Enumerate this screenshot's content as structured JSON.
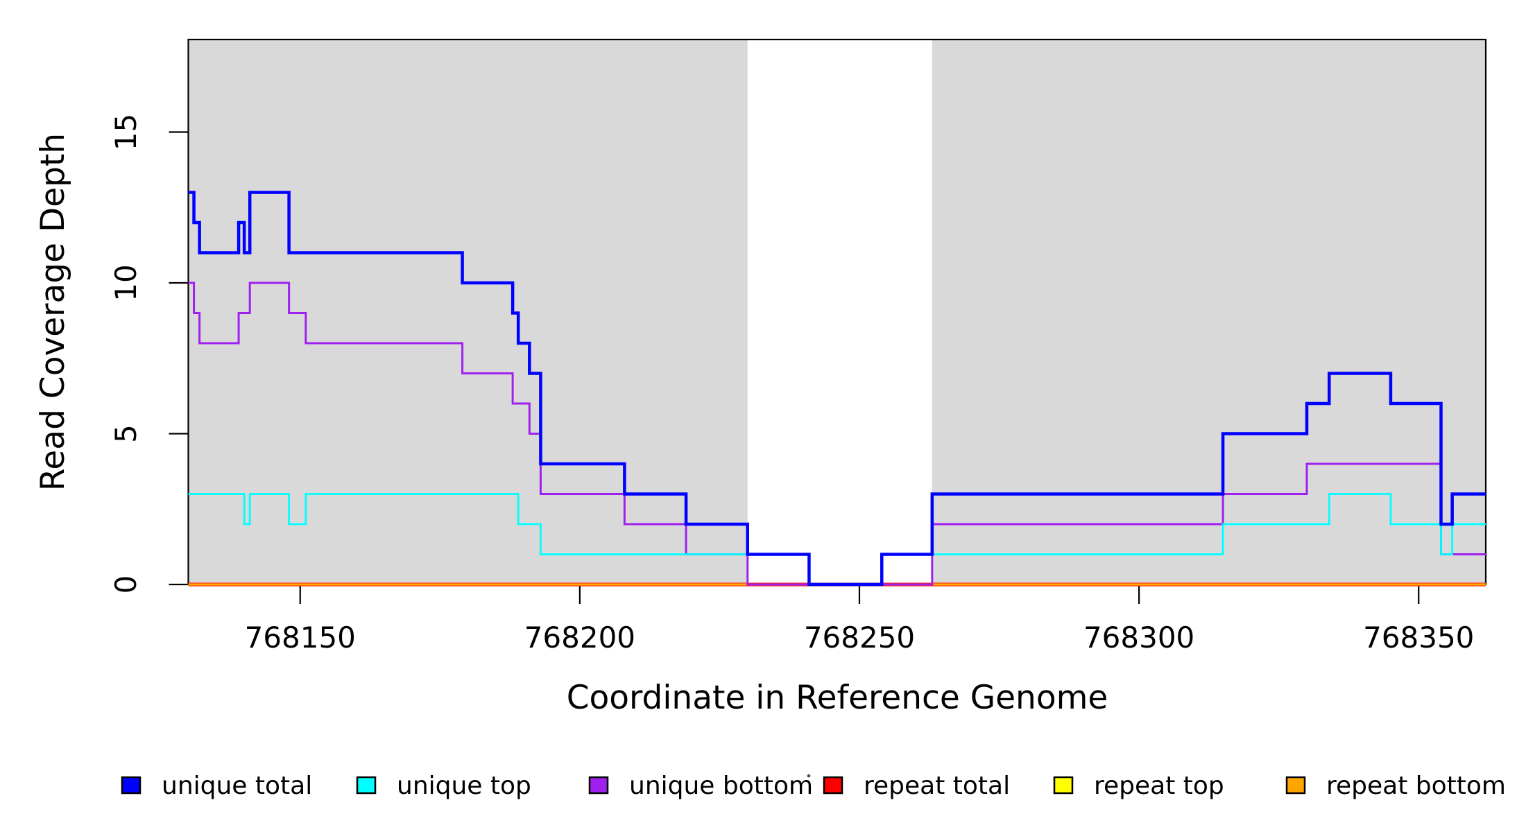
{
  "chart_data": {
    "type": "line",
    "subtype": "step-coverage-plot",
    "title": "",
    "xlabel": "Coordinate in Reference Genome",
    "ylabel": "Read Coverage Depth",
    "xlim": [
      768130,
      768362
    ],
    "ylim": [
      0,
      18.1
    ],
    "xticks": [
      768150,
      768200,
      768250,
      768300,
      768350
    ],
    "yticks": [
      0,
      5,
      10,
      15
    ],
    "grid": false,
    "legend_position": "bottom",
    "shaded_regions": {
      "color": "#d9d9d9",
      "ranges": [
        [
          768130,
          768230
        ],
        [
          768263,
          768362
        ]
      ]
    },
    "x_end": 768362,
    "series": [
      {
        "name": "repeat total",
        "color": "#ff0000",
        "line_width": 5,
        "steps": [
          [
            768130,
            0
          ]
        ]
      },
      {
        "name": "repeat top",
        "color": "#ffff00",
        "line_width": 3,
        "steps": [
          [
            768130,
            0
          ]
        ]
      },
      {
        "name": "repeat bottom",
        "color": "#ffa500",
        "line_width": 3.2,
        "steps": [
          [
            768130,
            0
          ]
        ]
      },
      {
        "name": "unique bottom",
        "color": "#a020f0",
        "line_width": 3,
        "steps": [
          [
            768130,
            10
          ],
          [
            768131,
            9
          ],
          [
            768132,
            8
          ],
          [
            768139,
            9
          ],
          [
            768141,
            10
          ],
          [
            768148,
            9
          ],
          [
            768151,
            8
          ],
          [
            768179,
            7
          ],
          [
            768188,
            6
          ],
          [
            768191,
            5
          ],
          [
            768193,
            3
          ],
          [
            768208,
            2
          ],
          [
            768219,
            1
          ],
          [
            768230,
            0
          ],
          [
            768263,
            2
          ],
          [
            768315,
            3
          ],
          [
            768330,
            4
          ],
          [
            768354,
            1
          ]
        ]
      },
      {
        "name": "unique top",
        "color": "#00ffff",
        "line_width": 2.8,
        "steps": [
          [
            768130,
            3
          ],
          [
            768140,
            2
          ],
          [
            768141,
            3
          ],
          [
            768148,
            2
          ],
          [
            768151,
            3
          ],
          [
            768189,
            2
          ],
          [
            768193,
            1
          ],
          [
            768241,
            0
          ],
          [
            768254,
            1
          ],
          [
            768315,
            2
          ],
          [
            768334,
            3
          ],
          [
            768345,
            2
          ],
          [
            768354,
            1
          ],
          [
            768356,
            2
          ]
        ]
      },
      {
        "name": "unique total",
        "color": "#0000ff",
        "line_width": 4.5,
        "steps": [
          [
            768130,
            13
          ],
          [
            768131,
            12
          ],
          [
            768132,
            11
          ],
          [
            768139,
            12
          ],
          [
            768140,
            11
          ],
          [
            768141,
            13
          ],
          [
            768148,
            11
          ],
          [
            768179,
            10
          ],
          [
            768188,
            9
          ],
          [
            768189,
            8
          ],
          [
            768191,
            7
          ],
          [
            768193,
            4
          ],
          [
            768208,
            3
          ],
          [
            768219,
            2
          ],
          [
            768230,
            1
          ],
          [
            768241,
            0
          ],
          [
            768254,
            1
          ],
          [
            768263,
            3
          ],
          [
            768315,
            5
          ],
          [
            768330,
            6
          ],
          [
            768334,
            7
          ],
          [
            768345,
            6
          ],
          [
            768354,
            2
          ],
          [
            768356,
            3
          ]
        ]
      }
    ],
    "legend": {
      "items": [
        {
          "label": "unique total",
          "color": "#0000ff"
        },
        {
          "label": "unique top",
          "color": "#00ffff"
        },
        {
          "label": "unique bottom",
          "color": "#a020f0"
        },
        {
          "label": "repeat total",
          "color": "#ff0000"
        },
        {
          "label": "repeat top",
          "color": "#ffff00"
        },
        {
          "label": "repeat bottom",
          "color": "#ffa500"
        }
      ]
    }
  },
  "colors": {
    "panel_shading": "#d9d9d9",
    "plot_border": "#000000",
    "background": "#ffffff"
  }
}
